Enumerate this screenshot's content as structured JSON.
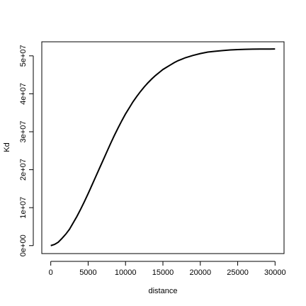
{
  "chart_data": {
    "type": "line",
    "title": "",
    "xlabel": "distance",
    "ylabel": "Kd",
    "xlim": [
      -1200,
      31200
    ],
    "ylim": [
      -2100000,
      53700000
    ],
    "x_ticks": [
      0,
      5000,
      10000,
      15000,
      20000,
      25000,
      30000
    ],
    "x_tick_labels": [
      "0",
      "5000",
      "10000",
      "15000",
      "20000",
      "25000",
      "30000"
    ],
    "y_ticks": [
      0,
      10000000,
      20000000,
      30000000,
      40000000,
      50000000
    ],
    "y_tick_labels": [
      "0e+00",
      "1e+07",
      "2e+07",
      "3e+07",
      "4e+07",
      "5e+07"
    ],
    "grid": false,
    "line_color": "#000000",
    "series": [
      {
        "x": [
          0,
          500,
          1000,
          1500,
          2000,
          2500,
          3000,
          3500,
          4000,
          4500,
          5000,
          5500,
          6000,
          6500,
          7000,
          7500,
          8000,
          8500,
          9000,
          9500,
          10000,
          10500,
          11000,
          11500,
          12000,
          12500,
          13000,
          13500,
          14000,
          14500,
          15000,
          15500,
          16000,
          16500,
          17000,
          17500,
          18000,
          19000,
          20000,
          21000,
          22000,
          23000,
          24000,
          25000,
          26000,
          27000,
          28000,
          29000,
          30000
        ],
        "values": [
          0,
          300000,
          900000,
          1900000,
          3000000,
          4300000,
          6000000,
          7700000,
          9600000,
          11600000,
          13700000,
          15900000,
          18100000,
          20300000,
          22500000,
          24700000,
          26900000,
          29000000,
          31000000,
          32900000,
          34700000,
          36300000,
          37900000,
          39300000,
          40600000,
          41800000,
          42900000,
          43900000,
          44800000,
          45600000,
          46400000,
          47000000,
          47600000,
          48200000,
          48700000,
          49100000,
          49500000,
          50100000,
          50600000,
          51000000,
          51200000,
          51400000,
          51550000,
          51650000,
          51720000,
          51760000,
          51780000,
          51790000,
          51800000
        ]
      }
    ]
  }
}
